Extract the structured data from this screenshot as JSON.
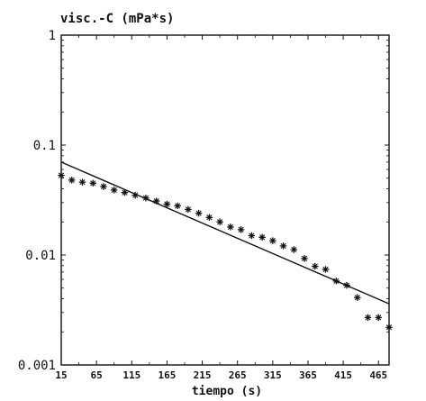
{
  "chart_data": {
    "type": "scatter",
    "title": "",
    "ylabel": "visc.-C (mPa*s)",
    "xlabel": "tiempo (s)",
    "xlim": [
      15,
      480
    ],
    "ylim": [
      0.001,
      1
    ],
    "y_scale": "log",
    "x_ticks": [
      "15",
      "65",
      "115",
      "165",
      "215",
      "265",
      "315",
      "365",
      "415",
      "465"
    ],
    "y_ticks": [
      "1",
      "0.1",
      "0.01",
      "0.001"
    ],
    "series": [
      {
        "type": "scatter",
        "marker": "asterisk",
        "x": [
          15,
          30,
          45,
          60,
          75,
          90,
          105,
          120,
          135,
          150,
          165,
          180,
          195,
          210,
          225,
          240,
          255,
          270,
          285,
          300,
          315,
          330,
          345,
          360,
          375,
          390,
          405,
          420,
          435,
          450,
          465,
          480
        ],
        "y": [
          0.053,
          0.048,
          0.046,
          0.045,
          0.042,
          0.039,
          0.037,
          0.035,
          0.033,
          0.031,
          0.029,
          0.028,
          0.026,
          0.024,
          0.022,
          0.02,
          0.018,
          0.017,
          0.015,
          0.0145,
          0.0135,
          0.0121,
          0.0112,
          0.0093,
          0.0079,
          0.0074,
          0.0058,
          0.0053,
          0.0041,
          0.0027,
          0.0027,
          0.0022
        ]
      },
      {
        "type": "line",
        "x": [
          15,
          480
        ],
        "y": [
          0.07,
          0.0036
        ]
      }
    ],
    "grid": false,
    "legend": "none",
    "colors": {
      "axis": "#111111",
      "marker": "#111111",
      "fit_line": "#111111",
      "background": "#ffffff"
    }
  }
}
